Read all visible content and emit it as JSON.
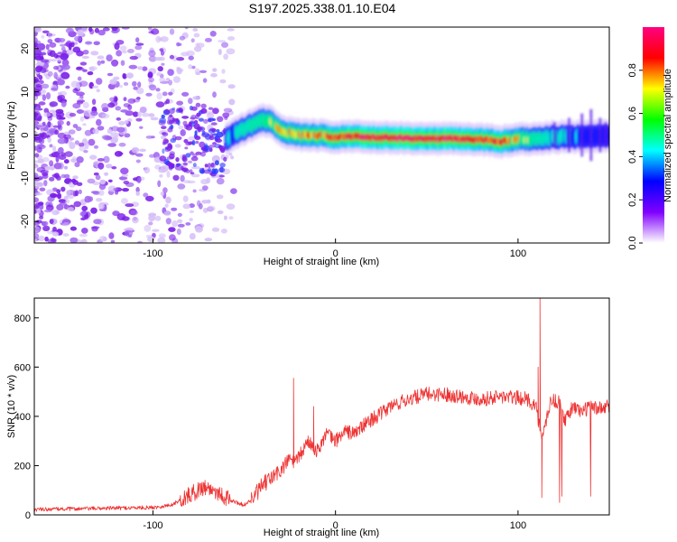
{
  "title": "S197.2025.338.01.10.E04",
  "chart_data": [
    {
      "type": "heatmap",
      "title": "S197.2025.338.01.10.E04",
      "xlabel": "Height of straight line (km)",
      "ylabel": "Frequency (Hz)",
      "xlim": [
        -165,
        150
      ],
      "ylim": [
        -25,
        25
      ],
      "xticks": [
        -100,
        0,
        100
      ],
      "xtick_labels": [
        "-100",
        "0",
        "100"
      ],
      "yticks": [
        -20,
        -10,
        0,
        10,
        20
      ],
      "ytick_labels": [
        "-20",
        "-10",
        "0",
        "10",
        "20"
      ],
      "grid": false,
      "colorbar": {
        "label": "Normalized spectral amplitude",
        "range": [
          0,
          1
        ],
        "ticks": [
          0.0,
          0.2,
          0.4,
          0.6,
          0.8
        ],
        "tick_labels": [
          "0.0",
          "0.2",
          "0.4",
          "0.6",
          "0.8"
        ],
        "colors": [
          "#ffffff",
          "#8000ff",
          "#0000ff",
          "#00ffff",
          "#00ff00",
          "#ffff00",
          "#ff0000",
          "#ff0080"
        ]
      },
      "ridge": {
        "x": [
          -60,
          -55,
          -50,
          -45,
          -40,
          -35,
          -30,
          -25,
          -20,
          -10,
          0,
          10,
          20,
          40,
          60,
          80,
          90,
          100,
          110,
          120,
          130,
          140,
          150
        ],
        "freq": [
          -1,
          0.5,
          1.5,
          2.5,
          3.5,
          3,
          1,
          0.5,
          0,
          0,
          -0.5,
          -0.3,
          -0.5,
          -0.8,
          -0.8,
          -1,
          -1.5,
          -1,
          -0.8,
          -0.5,
          -0.5,
          -0.3,
          -0.3
        ],
        "amplitude": [
          0.45,
          0.5,
          0.55,
          0.6,
          0.65,
          0.7,
          0.85,
          0.8,
          0.75,
          0.78,
          0.85,
          0.9,
          0.95,
          0.97,
          0.95,
          0.9,
          0.88,
          0.75,
          0.6,
          0.5,
          0.45,
          0.4,
          0.35
        ]
      }
    },
    {
      "type": "line",
      "xlabel": "Height of straight line (km)",
      "ylabel": "SNR (10 * v/v)",
      "xlim": [
        -165,
        150
      ],
      "ylim": [
        0,
        880
      ],
      "xticks": [
        -100,
        0,
        100
      ],
      "xtick_labels": [
        "-100",
        "0",
        "100"
      ],
      "yticks": [
        0,
        200,
        400,
        600,
        800
      ],
      "ytick_labels": [
        "0",
        "200",
        "400",
        "600",
        "800"
      ],
      "grid": false,
      "color": "#ee3333",
      "series": [
        {
          "name": "SNR",
          "x": [
            -165,
            -140,
            -120,
            -100,
            -90,
            -80,
            -72,
            -65,
            -58,
            -50,
            -45,
            -40,
            -35,
            -30,
            -25,
            -22,
            -18,
            -15,
            -10,
            -5,
            0,
            5,
            10,
            15,
            20,
            25,
            30,
            40,
            50,
            60,
            70,
            80,
            90,
            100,
            105,
            110,
            113,
            118,
            122,
            126,
            130,
            135,
            140,
            145,
            150
          ],
          "y": [
            22,
            25,
            28,
            30,
            40,
            80,
            115,
            95,
            60,
            40,
            70,
            120,
            150,
            180,
            230,
            210,
            260,
            300,
            260,
            330,
            300,
            340,
            330,
            360,
            390,
            410,
            440,
            470,
            490,
            490,
            480,
            470,
            480,
            475,
            470,
            440,
            300,
            470,
            460,
            380,
            440,
            420,
            440,
            430,
            440
          ]
        }
      ],
      "spikes": [
        {
          "x": -23,
          "y": 555
        },
        {
          "x": -12,
          "y": 440
        },
        {
          "x": 111,
          "y": 600
        },
        {
          "x": 112,
          "y": 880
        },
        {
          "x": 113,
          "y": 70
        }
      ]
    }
  ]
}
